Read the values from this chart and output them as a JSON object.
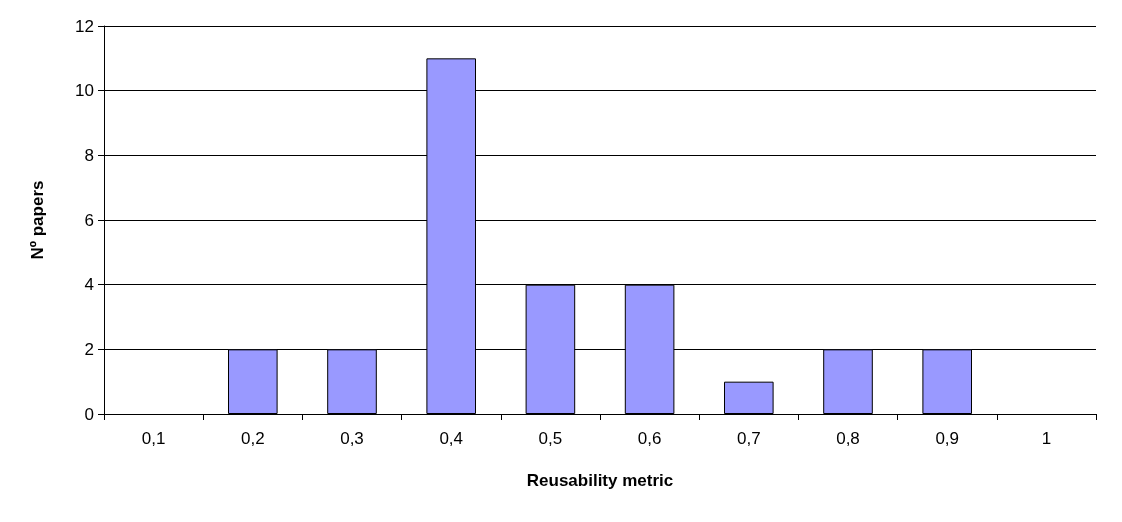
{
  "chart_data": {
    "type": "bar",
    "xlabel": "Reusability metric",
    "ylabel": "Nº papers",
    "categories": [
      "0,1",
      "0,2",
      "0,3",
      "0,4",
      "0,5",
      "0,6",
      "0,7",
      "0,8",
      "0,9",
      "1"
    ],
    "values": [
      0,
      2,
      2,
      11,
      4,
      4,
      1,
      2,
      2,
      0
    ],
    "color": "#9999ff",
    "ylim": [
      0,
      12
    ],
    "yticks": [
      0,
      2,
      4,
      6,
      8,
      10,
      12
    ],
    "grid": "y"
  }
}
